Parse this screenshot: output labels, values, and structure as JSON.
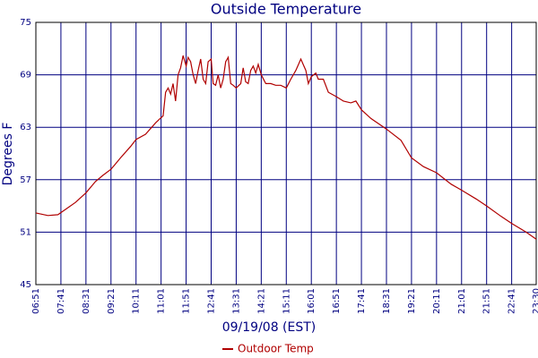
{
  "chart_data": {
    "type": "line",
    "title": "Outside Temperature",
    "x_label": "09/19/08 (EST)",
    "y_label": "Degrees F",
    "x": [
      411,
      435,
      455,
      470,
      490,
      511,
      530,
      545,
      561,
      580,
      600,
      611,
      630,
      650,
      661,
      665,
      670,
      675,
      680,
      685,
      690,
      695,
      700,
      705,
      711,
      715,
      720,
      725,
      730,
      735,
      740,
      745,
      750,
      755,
      761,
      765,
      770,
      775,
      780,
      785,
      790,
      795,
      800,
      805,
      811,
      820,
      825,
      830,
      835,
      840,
      845,
      850,
      855,
      861,
      870,
      880,
      890,
      900,
      911,
      920,
      930,
      940,
      950,
      955,
      961,
      970,
      975,
      985,
      995,
      1011,
      1025,
      1040,
      1050,
      1061,
      1080,
      1111,
      1140,
      1161,
      1185,
      1211,
      1240,
      1261,
      1290,
      1311,
      1340,
      1361,
      1390,
      1410
    ],
    "series": [
      {
        "name": "Outdoor Temp",
        "color": "#b00000",
        "values": [
          53.2,
          52.9,
          53.0,
          53.6,
          54.4,
          55.5,
          56.8,
          57.5,
          58.2,
          59.5,
          60.8,
          61.6,
          62.2,
          63.5,
          64.1,
          64.3,
          67.0,
          67.5,
          66.8,
          68.0,
          66.0,
          69.0,
          69.8,
          71.2,
          70.0,
          71.0,
          70.5,
          69.0,
          68.0,
          69.5,
          70.8,
          68.5,
          68.0,
          70.5,
          70.8,
          68.0,
          67.8,
          69.0,
          67.5,
          68.5,
          70.5,
          71.0,
          68.0,
          67.8,
          67.5,
          68.0,
          69.8,
          68.2,
          68.0,
          69.5,
          70.0,
          69.2,
          70.2,
          69.0,
          68.0,
          68.0,
          67.8,
          67.8,
          67.5,
          68.5,
          69.5,
          70.8,
          69.5,
          68.0,
          68.8,
          69.2,
          68.5,
          68.5,
          67.0,
          66.5,
          66.0,
          65.8,
          66.0,
          65.0,
          64.0,
          62.8,
          61.5,
          59.5,
          58.5,
          57.8,
          56.5,
          55.8,
          54.8,
          54.0,
          52.8,
          52.0,
          51.0,
          50.2
        ]
      }
    ],
    "xlim": [
      411,
      1410
    ],
    "xticks": [
      {
        "value": 411,
        "label": "06:51"
      },
      {
        "value": 461,
        "label": "07:41"
      },
      {
        "value": 511,
        "label": "08:31"
      },
      {
        "value": 561,
        "label": "09:21"
      },
      {
        "value": 611,
        "label": "10:11"
      },
      {
        "value": 661,
        "label": "11:01"
      },
      {
        "value": 711,
        "label": "11:51"
      },
      {
        "value": 761,
        "label": "12:41"
      },
      {
        "value": 811,
        "label": "13:31"
      },
      {
        "value": 861,
        "label": "14:21"
      },
      {
        "value": 911,
        "label": "15:11"
      },
      {
        "value": 961,
        "label": "16:01"
      },
      {
        "value": 1011,
        "label": "16:51"
      },
      {
        "value": 1061,
        "label": "17:41"
      },
      {
        "value": 1111,
        "label": "18:31"
      },
      {
        "value": 1161,
        "label": "19:21"
      },
      {
        "value": 1211,
        "label": "20:11"
      },
      {
        "value": 1261,
        "label": "21:01"
      },
      {
        "value": 1311,
        "label": "21:51"
      },
      {
        "value": 1361,
        "label": "22:41"
      },
      {
        "value": 1410,
        "label": "23:30"
      }
    ],
    "ylim": [
      45,
      75
    ],
    "yticks": [
      45,
      51,
      57,
      63,
      69,
      75
    ],
    "grid": true,
    "legend": "bottom"
  }
}
